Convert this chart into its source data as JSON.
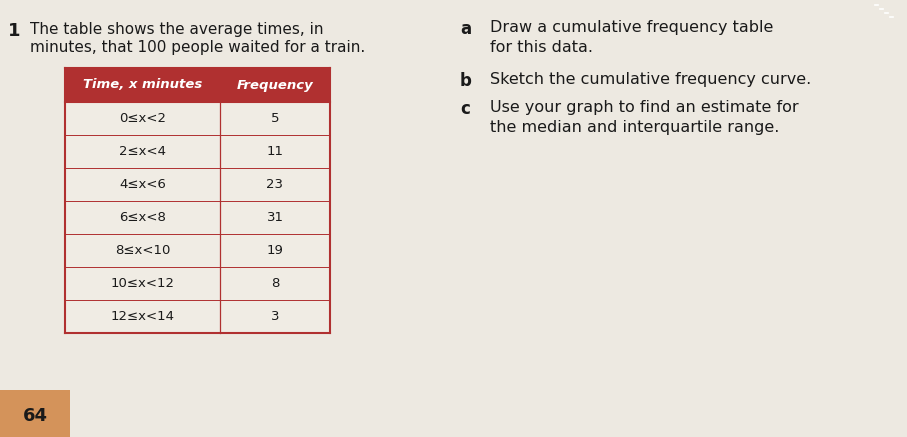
{
  "question_number": "1",
  "intro_text_line1": "The table shows the average times, in",
  "intro_text_line2": "minutes, that 100 people waited for a train.",
  "table_header": [
    "Time, x minutes",
    "Frequency"
  ],
  "table_rows": [
    [
      "0≤x<2",
      "5"
    ],
    [
      "2≤x<4",
      "11"
    ],
    [
      "4≤x<6",
      "23"
    ],
    [
      "6≤x<8",
      "31"
    ],
    [
      "8≤x<10",
      "19"
    ],
    [
      "10≤x<12",
      "8"
    ],
    [
      "12≤x<14",
      "3"
    ]
  ],
  "part_a_label": "a",
  "part_a_text_line1": "Draw a cumulative frequency table",
  "part_a_text_line2": "for this data.",
  "part_b_label": "b",
  "part_b_text": "Sketch the cumulative frequency curve.",
  "part_c_label": "c",
  "part_c_text_line1": "Use your graph to find an estimate for",
  "part_c_text_line2": "the median and interquartile range.",
  "page_number": "64",
  "bg_color": "#ede9e1",
  "table_border_color": "#b03030",
  "table_header_bg": "#b03030",
  "table_row_bg": "#f0ece4",
  "header_text_color": "#ffffff",
  "body_text_color": "#1a1a1a",
  "label_color": "#1a1a1a",
  "label_bold_color": "#1a1a1a",
  "page_num_bg": "#d4935a",
  "corner_logo_color": "#b03030"
}
